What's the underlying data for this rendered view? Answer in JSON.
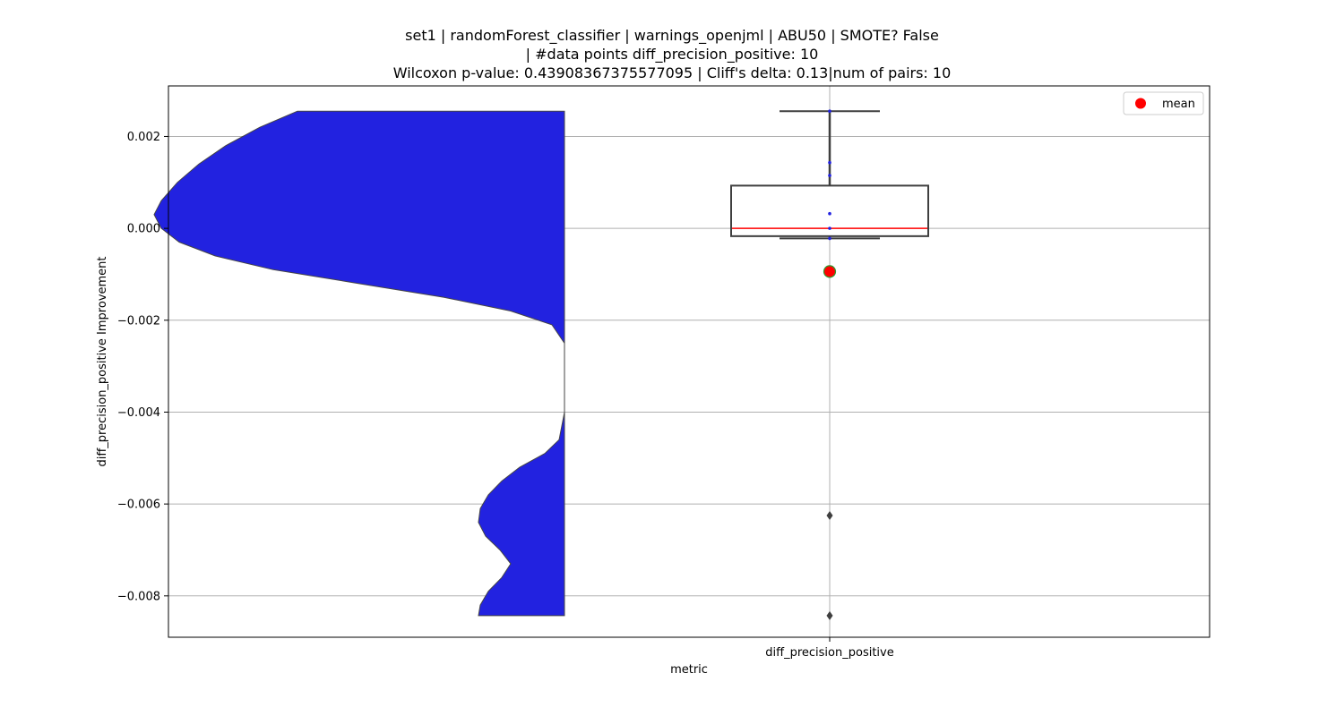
{
  "chart_data": {
    "type": "violin+box",
    "title_lines": [
      "set1 | randomForest_classifier | warnings_openjml | ABU50 | SMOTE? False",
      "| #data points diff_precision_positive: 10",
      "Wilcoxon p-value: 0.43908367375577095 | Cliff's delta: 0.13|num of pairs: 10"
    ],
    "xlabel": "metric",
    "ylabel": "diff_precision_positive Improvement",
    "categories": [
      "diff_precision_positive"
    ],
    "ylim": [
      -0.0089,
      0.0031
    ],
    "yticks": [
      0.002,
      0.0,
      -0.002,
      -0.004,
      -0.006,
      -0.008
    ],
    "ytick_labels": [
      "0.002",
      "0.000",
      "−0.002",
      "−0.004",
      "−0.006",
      "−0.008"
    ],
    "grid": true,
    "legend": {
      "placement": "top-right",
      "entries": [
        {
          "label": "mean",
          "color": "#ff0000"
        }
      ]
    },
    "box": {
      "whisker_low": -0.00022,
      "q1": -0.00017,
      "median": 0.0,
      "q3": 0.00093,
      "whisker_high": 0.00255,
      "mean": -0.00094,
      "outliers": [
        -0.00625,
        -0.00843
      ],
      "points": [
        0.00255,
        0.00143,
        0.00115,
        0.00032,
        0.0,
        -0.00022
      ]
    },
    "violin": {
      "color": "#2222e0",
      "ymin": -0.00843,
      "ymax": 0.00255,
      "profile": [
        [
          0.00255,
          0.298
        ],
        [
          0.0022,
          0.34
        ],
        [
          0.0018,
          0.378
        ],
        [
          0.0014,
          0.408
        ],
        [
          0.001,
          0.432
        ],
        [
          0.0006,
          0.45
        ],
        [
          0.0003,
          0.458
        ],
        [
          0.0,
          0.45
        ],
        [
          -0.0003,
          0.43
        ],
        [
          -0.0006,
          0.39
        ],
        [
          -0.0009,
          0.325
        ],
        [
          -0.0012,
          0.23
        ],
        [
          -0.0015,
          0.135
        ],
        [
          -0.0018,
          0.06
        ],
        [
          -0.0021,
          0.014
        ],
        [
          -0.0025,
          0.0
        ],
        [
          -0.004,
          0.0
        ],
        [
          -0.0046,
          0.006
        ],
        [
          -0.0049,
          0.022
        ],
        [
          -0.0052,
          0.05
        ],
        [
          -0.0055,
          0.07
        ],
        [
          -0.0058,
          0.085
        ],
        [
          -0.0061,
          0.094
        ],
        [
          -0.0064,
          0.096
        ],
        [
          -0.0067,
          0.088
        ],
        [
          -0.007,
          0.072
        ],
        [
          -0.0073,
          0.06
        ],
        [
          -0.0076,
          0.07
        ],
        [
          -0.0079,
          0.085
        ],
        [
          -0.0082,
          0.094
        ],
        [
          -0.00843,
          0.096
        ]
      ]
    }
  }
}
